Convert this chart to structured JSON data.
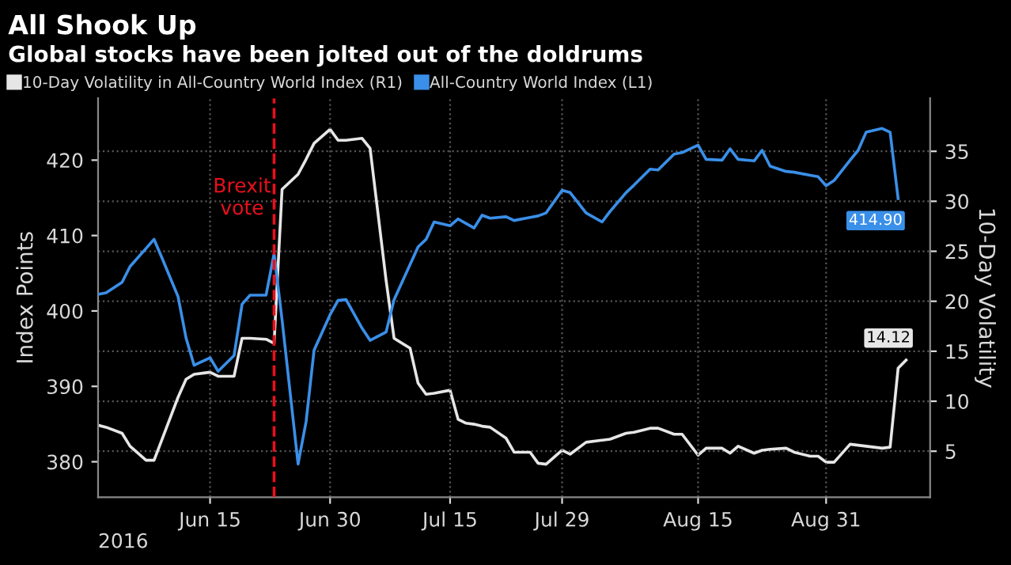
{
  "chart_data": {
    "type": "line",
    "title": "All Shook Up",
    "subtitle": "Global stocks have been jolted out of the doldrums",
    "xlabel": "2016",
    "ylabel": "Index Points",
    "y2label": "10-Day Volatility",
    "legend": "top left",
    "grid": true,
    "line_style": "solid",
    "marker": "none",
    "xlim": [
      "2016-06-01",
      "2016-09-13"
    ],
    "xticks": [
      {
        "value": "2016-06-15",
        "label": "Jun 15"
      },
      {
        "value": "2016-06-30",
        "label": "Jun 30"
      },
      {
        "value": "2016-07-15",
        "label": "Jul 15"
      },
      {
        "value": "2016-07-29",
        "label": "Jul 29"
      },
      {
        "value": "2016-08-15",
        "label": "Aug 15"
      },
      {
        "value": "2016-08-31",
        "label": "Aug 31"
      }
    ],
    "ylim": [
      375.3,
      428.2
    ],
    "yticks": [
      380,
      390,
      400,
      410,
      420
    ],
    "y2lim": [
      0.4,
      40.3
    ],
    "y2ticks": [
      5,
      10,
      15,
      20,
      25,
      30,
      35
    ],
    "ref_lines": [
      {
        "axis": "x",
        "value": "2016-06-23",
        "label": "Brexit\nvote",
        "color": "#e8101c",
        "line_style": "dashed"
      }
    ],
    "series": [
      {
        "name": "10-Day Volatility in All-Country World Index (R1)",
        "color": "#e6e6e6",
        "axis": "y2",
        "x": [
          "2016-06-01",
          "2016-06-02",
          "2016-06-04",
          "2016-06-05",
          "2016-06-07",
          "2016-06-08",
          "2016-06-09",
          "2016-06-11",
          "2016-06-12",
          "2016-06-13",
          "2016-06-15",
          "2016-06-16",
          "2016-06-18",
          "2016-06-19",
          "2016-06-20",
          "2016-06-22",
          "2016-06-23",
          "2016-06-24",
          "2016-06-26",
          "2016-06-27",
          "2016-06-28",
          "2016-06-30",
          "2016-07-01",
          "2016-07-02",
          "2016-07-04",
          "2016-07-05",
          "2016-07-07",
          "2016-07-08",
          "2016-07-10",
          "2016-07-11",
          "2016-07-12",
          "2016-07-13",
          "2016-07-15",
          "2016-07-16",
          "2016-07-17",
          "2016-07-18",
          "2016-07-19",
          "2016-07-20",
          "2016-07-22",
          "2016-07-23",
          "2016-07-25",
          "2016-07-26",
          "2016-07-27",
          "2016-07-29",
          "2016-07-30",
          "2016-08-01",
          "2016-08-03",
          "2016-08-04",
          "2016-08-06",
          "2016-08-07",
          "2016-08-09",
          "2016-08-10",
          "2016-08-12",
          "2016-08-13",
          "2016-08-15",
          "2016-08-16",
          "2016-08-18",
          "2016-08-19",
          "2016-08-20",
          "2016-08-22",
          "2016-08-23",
          "2016-08-24",
          "2016-08-26",
          "2016-08-27",
          "2016-08-29",
          "2016-08-30",
          "2016-08-31",
          "2016-09-01",
          "2016-09-03",
          "2016-09-04",
          "2016-09-05",
          "2016-09-07",
          "2016-09-08",
          "2016-09-09",
          "2016-09-10"
        ],
        "values": [
          7.6,
          7.4,
          6.8,
          5.5,
          4.1,
          4.1,
          6.2,
          10.4,
          12.2,
          12.7,
          12.9,
          12.5,
          12.5,
          16.3,
          16.3,
          16.2,
          15.8,
          31.2,
          32.7,
          34.2,
          35.8,
          37.2,
          36.1,
          36.1,
          36.3,
          35.3,
          22.1,
          16.3,
          15.3,
          11.8,
          10.7,
          10.8,
          11.1,
          8.2,
          7.8,
          7.7,
          7.5,
          7.4,
          6.3,
          4.9,
          4.9,
          3.8,
          3.7,
          5.1,
          4.7,
          5.9,
          6.1,
          6.2,
          6.8,
          6.9,
          7.3,
          7.3,
          6.7,
          6.7,
          4.6,
          5.3,
          5.3,
          4.8,
          5.5,
          4.8,
          5.1,
          5.2,
          5.3,
          4.9,
          4.5,
          4.5,
          3.9,
          3.9,
          5.7,
          5.6,
          5.5,
          5.3,
          5.4,
          13.3,
          14.12
        ],
        "value_labels": [
          null,
          null,
          null,
          null,
          null,
          null,
          null,
          null,
          null,
          null,
          null,
          null,
          null,
          null,
          null,
          null,
          null,
          null,
          null,
          null,
          null,
          null,
          null,
          null,
          null,
          null,
          null,
          null,
          null,
          null,
          null,
          null,
          null,
          null,
          null,
          null,
          null,
          null,
          null,
          null,
          null,
          null,
          null,
          null,
          null,
          null,
          null,
          null,
          null,
          null,
          null,
          null,
          null,
          null,
          null,
          null,
          null,
          null,
          null,
          null,
          null,
          null,
          null,
          null,
          null,
          null,
          null,
          null,
          null,
          null,
          null,
          null,
          null,
          null,
          "14.12"
        ]
      },
      {
        "name": "All-Country World Index (L1)",
        "color": "#3a8fe8",
        "x": [
          "2016-06-01",
          "2016-06-02",
          "2016-06-04",
          "2016-06-05",
          "2016-06-07",
          "2016-06-08",
          "2016-06-09",
          "2016-06-11",
          "2016-06-12",
          "2016-06-13",
          "2016-06-15",
          "2016-06-16",
          "2016-06-18",
          "2016-06-19",
          "2016-06-20",
          "2016-06-22",
          "2016-06-23",
          "2016-06-24",
          "2016-06-26",
          "2016-06-27",
          "2016-06-28",
          "2016-06-30",
          "2016-07-01",
          "2016-07-02",
          "2016-07-04",
          "2016-07-05",
          "2016-07-07",
          "2016-07-08",
          "2016-07-11",
          "2016-07-12",
          "2016-07-13",
          "2016-07-15",
          "2016-07-16",
          "2016-07-18",
          "2016-07-19",
          "2016-07-20",
          "2016-07-22",
          "2016-07-23",
          "2016-07-25",
          "2016-07-26",
          "2016-07-27",
          "2016-07-29",
          "2016-07-30",
          "2016-08-01",
          "2016-08-03",
          "2016-08-04",
          "2016-08-06",
          "2016-08-07",
          "2016-08-09",
          "2016-08-10",
          "2016-08-12",
          "2016-08-13",
          "2016-08-15",
          "2016-08-16",
          "2016-08-18",
          "2016-08-19",
          "2016-08-20",
          "2016-08-22",
          "2016-08-23",
          "2016-08-24",
          "2016-08-26",
          "2016-08-27",
          "2016-08-29",
          "2016-08-30",
          "2016-08-31",
          "2016-09-01",
          "2016-09-03",
          "2016-09-04",
          "2016-09-05",
          "2016-09-07",
          "2016-09-08",
          "2016-09-09"
        ],
        "values": [
          402.2,
          402.4,
          403.8,
          405.9,
          408.3,
          409.5,
          407.0,
          401.9,
          396.4,
          392.8,
          393.8,
          392.0,
          394.1,
          400.9,
          402.1,
          402.1,
          407.6,
          398.8,
          379.7,
          385.3,
          394.8,
          399.5,
          401.4,
          401.5,
          397.7,
          396.1,
          397.2,
          401.5,
          408.5,
          409.5,
          411.8,
          411.3,
          412.2,
          411.0,
          412.7,
          412.3,
          412.5,
          412.0,
          412.4,
          412.6,
          413.0,
          416.0,
          415.7,
          413.0,
          411.8,
          413.2,
          415.7,
          416.7,
          418.8,
          418.7,
          420.8,
          421.0,
          422.0,
          420.1,
          420.0,
          421.5,
          420.1,
          419.9,
          421.3,
          419.2,
          418.5,
          418.4,
          418.0,
          417.8,
          416.6,
          417.3,
          420.0,
          421.3,
          423.7,
          424.2,
          423.7,
          414.9
        ],
        "value_labels": [
          null,
          null,
          null,
          null,
          null,
          null,
          null,
          null,
          null,
          null,
          null,
          null,
          null,
          null,
          null,
          null,
          null,
          null,
          null,
          null,
          null,
          null,
          null,
          null,
          null,
          null,
          null,
          null,
          null,
          null,
          null,
          null,
          null,
          null,
          null,
          null,
          null,
          null,
          null,
          null,
          null,
          null,
          null,
          null,
          null,
          null,
          null,
          null,
          null,
          null,
          null,
          null,
          null,
          null,
          null,
          null,
          null,
          null,
          null,
          null,
          null,
          null,
          null,
          null,
          null,
          null,
          null,
          null,
          null,
          null,
          null,
          "414.90"
        ]
      }
    ]
  }
}
